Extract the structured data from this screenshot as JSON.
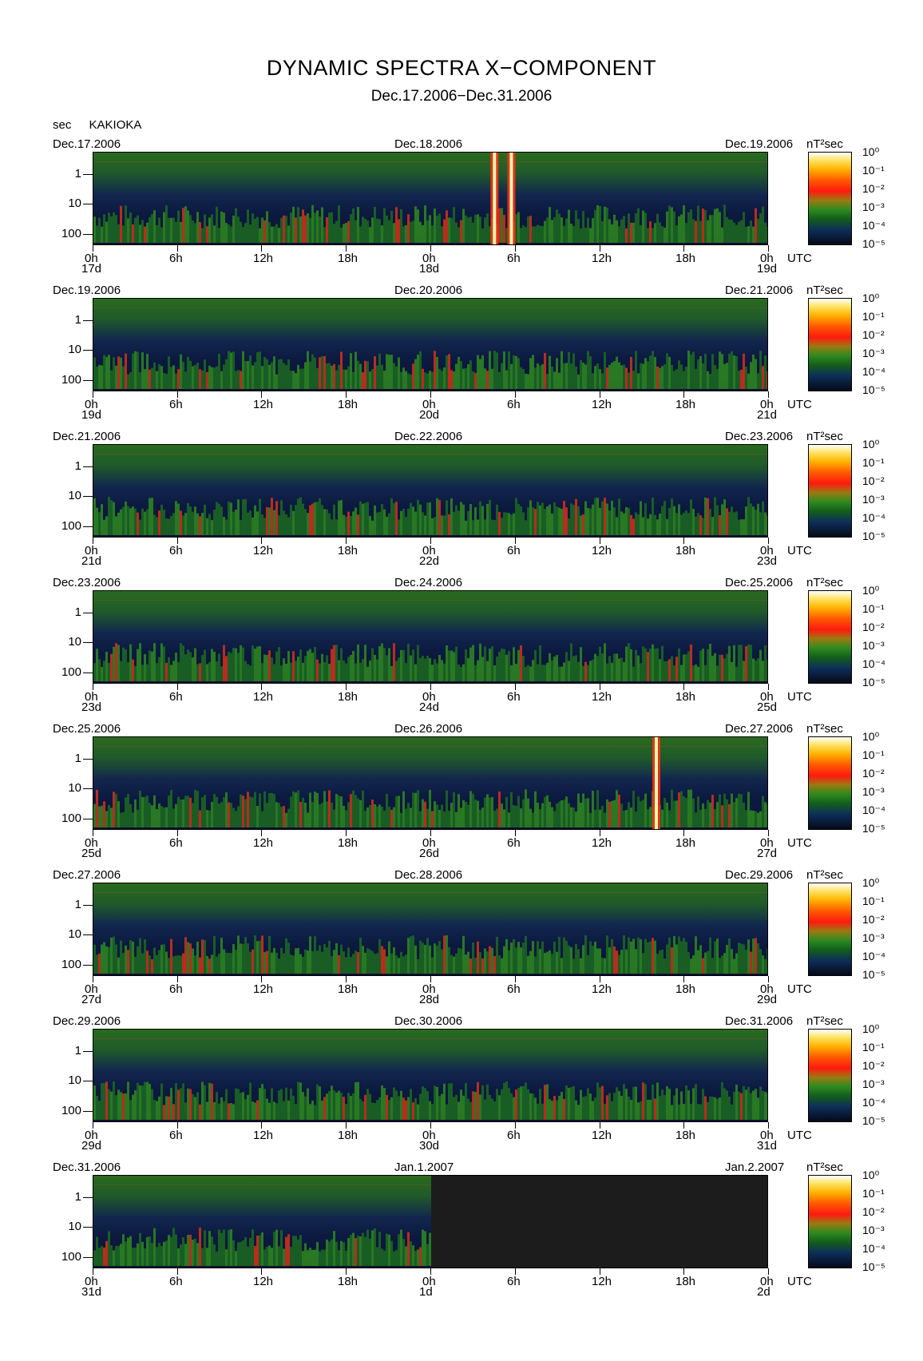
{
  "title": "DYNAMIC SPECTRA X−COMPONENT",
  "subtitle": "Dec.17.2006−Dec.31.2006",
  "station": {
    "unit": "sec",
    "name": "KAKIOKA"
  },
  "colorbar_unit": "nT²sec",
  "colorbar_labels": [
    "10⁰",
    "10⁻¹",
    "10⁻²",
    "10⁻³",
    "10⁻⁴",
    "10⁻⁵"
  ],
  "y_labels": [
    "1",
    "10",
    "100"
  ],
  "x_labels": [
    "0h",
    "6h",
    "12h",
    "18h",
    "0h",
    "6h",
    "12h",
    "18h",
    "0h"
  ],
  "utc_label": "UTC",
  "panels": [
    {
      "start": "Dec.17.2006",
      "mid": "Dec.18.2006",
      "end": "Dec.19.2006",
      "days": [
        "17d",
        "18d",
        "19d"
      ]
    },
    {
      "start": "Dec.19.2006",
      "mid": "Dec.20.2006",
      "end": "Dec.21.2006",
      "days": [
        "19d",
        "20d",
        "21d"
      ]
    },
    {
      "start": "Dec.21.2006",
      "mid": "Dec.22.2006",
      "end": "Dec.23.2006",
      "days": [
        "21d",
        "22d",
        "23d"
      ]
    },
    {
      "start": "Dec.23.2006",
      "mid": "Dec.24.2006",
      "end": "Dec.25.2006",
      "days": [
        "23d",
        "24d",
        "25d"
      ]
    },
    {
      "start": "Dec.25.2006",
      "mid": "Dec.26.2006",
      "end": "Dec.27.2006",
      "days": [
        "25d",
        "26d",
        "27d"
      ]
    },
    {
      "start": "Dec.27.2006",
      "mid": "Dec.28.2006",
      "end": "Dec.29.2006",
      "days": [
        "27d",
        "28d",
        "29d"
      ]
    },
    {
      "start": "Dec.29.2006",
      "mid": "Dec.30.2006",
      "end": "Dec.31.2006",
      "days": [
        "29d",
        "30d",
        "31d"
      ]
    },
    {
      "start": "Dec.31.2006",
      "mid": "Jan.1.2007",
      "end": "Jan.2.2007",
      "days": [
        "31d",
        "1d",
        "2d"
      ]
    }
  ],
  "chart_data": {
    "type": "heatmap",
    "title": "DYNAMIC SPECTRA X−COMPONENT",
    "subtitle": "Dec.17.2006−Dec.31.2006",
    "xlabel": "UTC",
    "ylabel": "sec",
    "yscale": "log",
    "ylim": [
      300,
      0.2
    ],
    "colorscale": "log",
    "colorbar_range": [
      1e-05,
      1
    ],
    "colors": {
      "high": "#ffe46a",
      "mid": "#ff1a10",
      "low": "#2f8a20",
      "background": "#0d2e5a"
    },
    "events": [
      {
        "panel": 0,
        "time_h": 28.5,
        "note": "bright vertical burst"
      },
      {
        "panel": 0,
        "time_h": 29.7,
        "note": "bright vertical burst"
      },
      {
        "panel": 4,
        "time_h": 40.0,
        "note": "high-power burst"
      }
    ],
    "no_data": {
      "panel": 7,
      "from_h": 24,
      "to_h": 48
    }
  }
}
